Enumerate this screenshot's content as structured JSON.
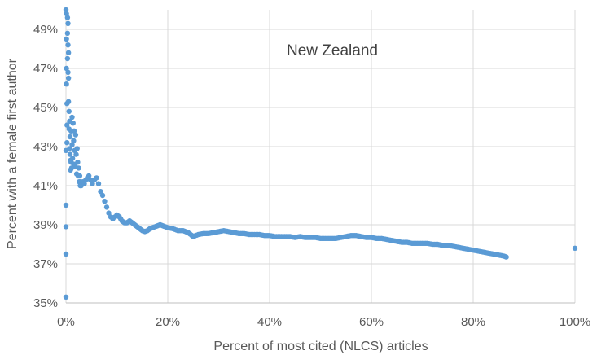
{
  "chart_data": {
    "type": "scatter",
    "title": "",
    "annotation": "New Zealand",
    "xlabel": "Percent of most cited (NLCS) articles",
    "ylabel": "Percent with a female first author",
    "x_unit": "%",
    "y_unit": "%",
    "xlim": [
      0,
      100
    ],
    "ylim": [
      35,
      50
    ],
    "x_ticks": [
      "0%",
      "20%",
      "40%",
      "60%",
      "80%",
      "100%"
    ],
    "y_ticks": [
      "35%",
      "37%",
      "39%",
      "41%",
      "43%",
      "45%",
      "47%",
      "49%"
    ],
    "grid": true,
    "legend": "none",
    "series": [
      {
        "color": "#5b9bd5",
        "points": [
          [
            0,
            35.3
          ],
          [
            0,
            37.5
          ],
          [
            0,
            38.9
          ],
          [
            0,
            40.0
          ],
          [
            0,
            42.8
          ],
          [
            0,
            50.0
          ],
          [
            0.1,
            49.8
          ],
          [
            0.1,
            48.5
          ],
          [
            0.1,
            47.0
          ],
          [
            0.1,
            46.2
          ],
          [
            0.2,
            45.2
          ],
          [
            0.2,
            44.1
          ],
          [
            0.2,
            43.2
          ],
          [
            0.3,
            49.6
          ],
          [
            0.3,
            48.8
          ],
          [
            0.3,
            47.5
          ],
          [
            0.4,
            49.3
          ],
          [
            0.4,
            48.2
          ],
          [
            0.4,
            46.8
          ],
          [
            0.5,
            47.8
          ],
          [
            0.5,
            46.5
          ],
          [
            0.5,
            45.3
          ],
          [
            0.6,
            44.8
          ],
          [
            0.6,
            43.9
          ],
          [
            0.7,
            42.9
          ],
          [
            0.7,
            44.3
          ],
          [
            0.8,
            43.5
          ],
          [
            0.8,
            42.6
          ],
          [
            0.9,
            41.8
          ],
          [
            0.9,
            42.3
          ],
          [
            1.0,
            43.8
          ],
          [
            1.0,
            42.2
          ],
          [
            1.1,
            41.9
          ],
          [
            1.2,
            44.5
          ],
          [
            1.2,
            43.1
          ],
          [
            1.3,
            42.4
          ],
          [
            1.4,
            44.2
          ],
          [
            1.5,
            43.3
          ],
          [
            1.5,
            42.1
          ],
          [
            1.6,
            43.8
          ],
          [
            1.7,
            42.8
          ],
          [
            1.8,
            42.0
          ],
          [
            1.9,
            43.6
          ],
          [
            2.0,
            42.6
          ],
          [
            2.1,
            41.6
          ],
          [
            2.2,
            42.9
          ],
          [
            2.3,
            42.2
          ],
          [
            2.4,
            41.5
          ],
          [
            2.5,
            41.9
          ],
          [
            2.6,
            41.2
          ],
          [
            2.7,
            41.5
          ],
          [
            2.8,
            41.0
          ],
          [
            2.9,
            41.2
          ],
          [
            3.0,
            41.0
          ],
          [
            3.3,
            41.2
          ],
          [
            3.6,
            41.1
          ],
          [
            3.9,
            41.3
          ],
          [
            4.2,
            41.4
          ],
          [
            4.5,
            41.5
          ],
          [
            4.8,
            41.3
          ],
          [
            5.2,
            41.1
          ],
          [
            5.6,
            41.3
          ],
          [
            6.0,
            41.4
          ],
          [
            6.4,
            41.1
          ],
          [
            6.8,
            40.7
          ],
          [
            7.2,
            40.5
          ],
          [
            7.6,
            40.2
          ],
          [
            8.0,
            39.9
          ],
          [
            8.4,
            39.6
          ],
          [
            8.8,
            39.4
          ],
          [
            9.2,
            39.3
          ],
          [
            9.6,
            39.4
          ],
          [
            10.0,
            39.5
          ],
          [
            10.5,
            39.4
          ],
          [
            11.0,
            39.2
          ],
          [
            11.5,
            39.1
          ],
          [
            12.0,
            39.1
          ],
          [
            12.5,
            39.2
          ],
          [
            13.0,
            39.1
          ],
          [
            13.5,
            39.0
          ],
          [
            14.0,
            38.9
          ],
          [
            14.5,
            38.8
          ],
          [
            15.0,
            38.7
          ],
          [
            15.5,
            38.65
          ],
          [
            16.0,
            38.7
          ],
          [
            16.5,
            38.8
          ],
          [
            17.0,
            38.85
          ],
          [
            17.5,
            38.9
          ],
          [
            18.0,
            38.95
          ],
          [
            18.5,
            39.0
          ],
          [
            19.0,
            38.95
          ],
          [
            19.5,
            38.9
          ],
          [
            20.0,
            38.85
          ],
          [
            21.0,
            38.8
          ],
          [
            22.0,
            38.7
          ],
          [
            23.0,
            38.7
          ],
          [
            24.0,
            38.6
          ],
          [
            25.0,
            38.4
          ],
          [
            26.0,
            38.5
          ],
          [
            27.0,
            38.55
          ],
          [
            28.0,
            38.55
          ],
          [
            29.0,
            38.6
          ],
          [
            30.0,
            38.65
          ],
          [
            31.0,
            38.7
          ],
          [
            32.0,
            38.65
          ],
          [
            33.0,
            38.6
          ],
          [
            34.0,
            38.55
          ],
          [
            35.0,
            38.55
          ],
          [
            36.0,
            38.5
          ],
          [
            37.0,
            38.5
          ],
          [
            38.0,
            38.5
          ],
          [
            39.0,
            38.45
          ],
          [
            40.0,
            38.45
          ],
          [
            41.0,
            38.4
          ],
          [
            42.0,
            38.4
          ],
          [
            43.0,
            38.4
          ],
          [
            44.0,
            38.4
          ],
          [
            45.0,
            38.35
          ],
          [
            46.0,
            38.4
          ],
          [
            47.0,
            38.35
          ],
          [
            48.0,
            38.35
          ],
          [
            49.0,
            38.35
          ],
          [
            50.0,
            38.3
          ],
          [
            51.0,
            38.3
          ],
          [
            52.0,
            38.3
          ],
          [
            53.0,
            38.3
          ],
          [
            54.0,
            38.35
          ],
          [
            55.0,
            38.4
          ],
          [
            56.0,
            38.45
          ],
          [
            57.0,
            38.45
          ],
          [
            58.0,
            38.4
          ],
          [
            59.0,
            38.35
          ],
          [
            60.0,
            38.35
          ],
          [
            61.0,
            38.3
          ],
          [
            62.0,
            38.3
          ],
          [
            63.0,
            38.25
          ],
          [
            64.0,
            38.2
          ],
          [
            65.0,
            38.15
          ],
          [
            66.0,
            38.1
          ],
          [
            67.0,
            38.1
          ],
          [
            68.0,
            38.05
          ],
          [
            69.0,
            38.05
          ],
          [
            70.0,
            38.05
          ],
          [
            71.0,
            38.05
          ],
          [
            72.0,
            38.0
          ],
          [
            73.0,
            38.0
          ],
          [
            74.0,
            37.95
          ],
          [
            75.0,
            37.95
          ],
          [
            76.0,
            37.9
          ],
          [
            77.0,
            37.85
          ],
          [
            78.0,
            37.8
          ],
          [
            79.0,
            37.75
          ],
          [
            80.0,
            37.7
          ],
          [
            81.0,
            37.65
          ],
          [
            82.0,
            37.6
          ],
          [
            83.0,
            37.55
          ],
          [
            84.0,
            37.5
          ],
          [
            85.0,
            37.45
          ],
          [
            86.0,
            37.4
          ],
          [
            86.5,
            37.35
          ],
          [
            100.0,
            37.8
          ]
        ]
      }
    ]
  }
}
